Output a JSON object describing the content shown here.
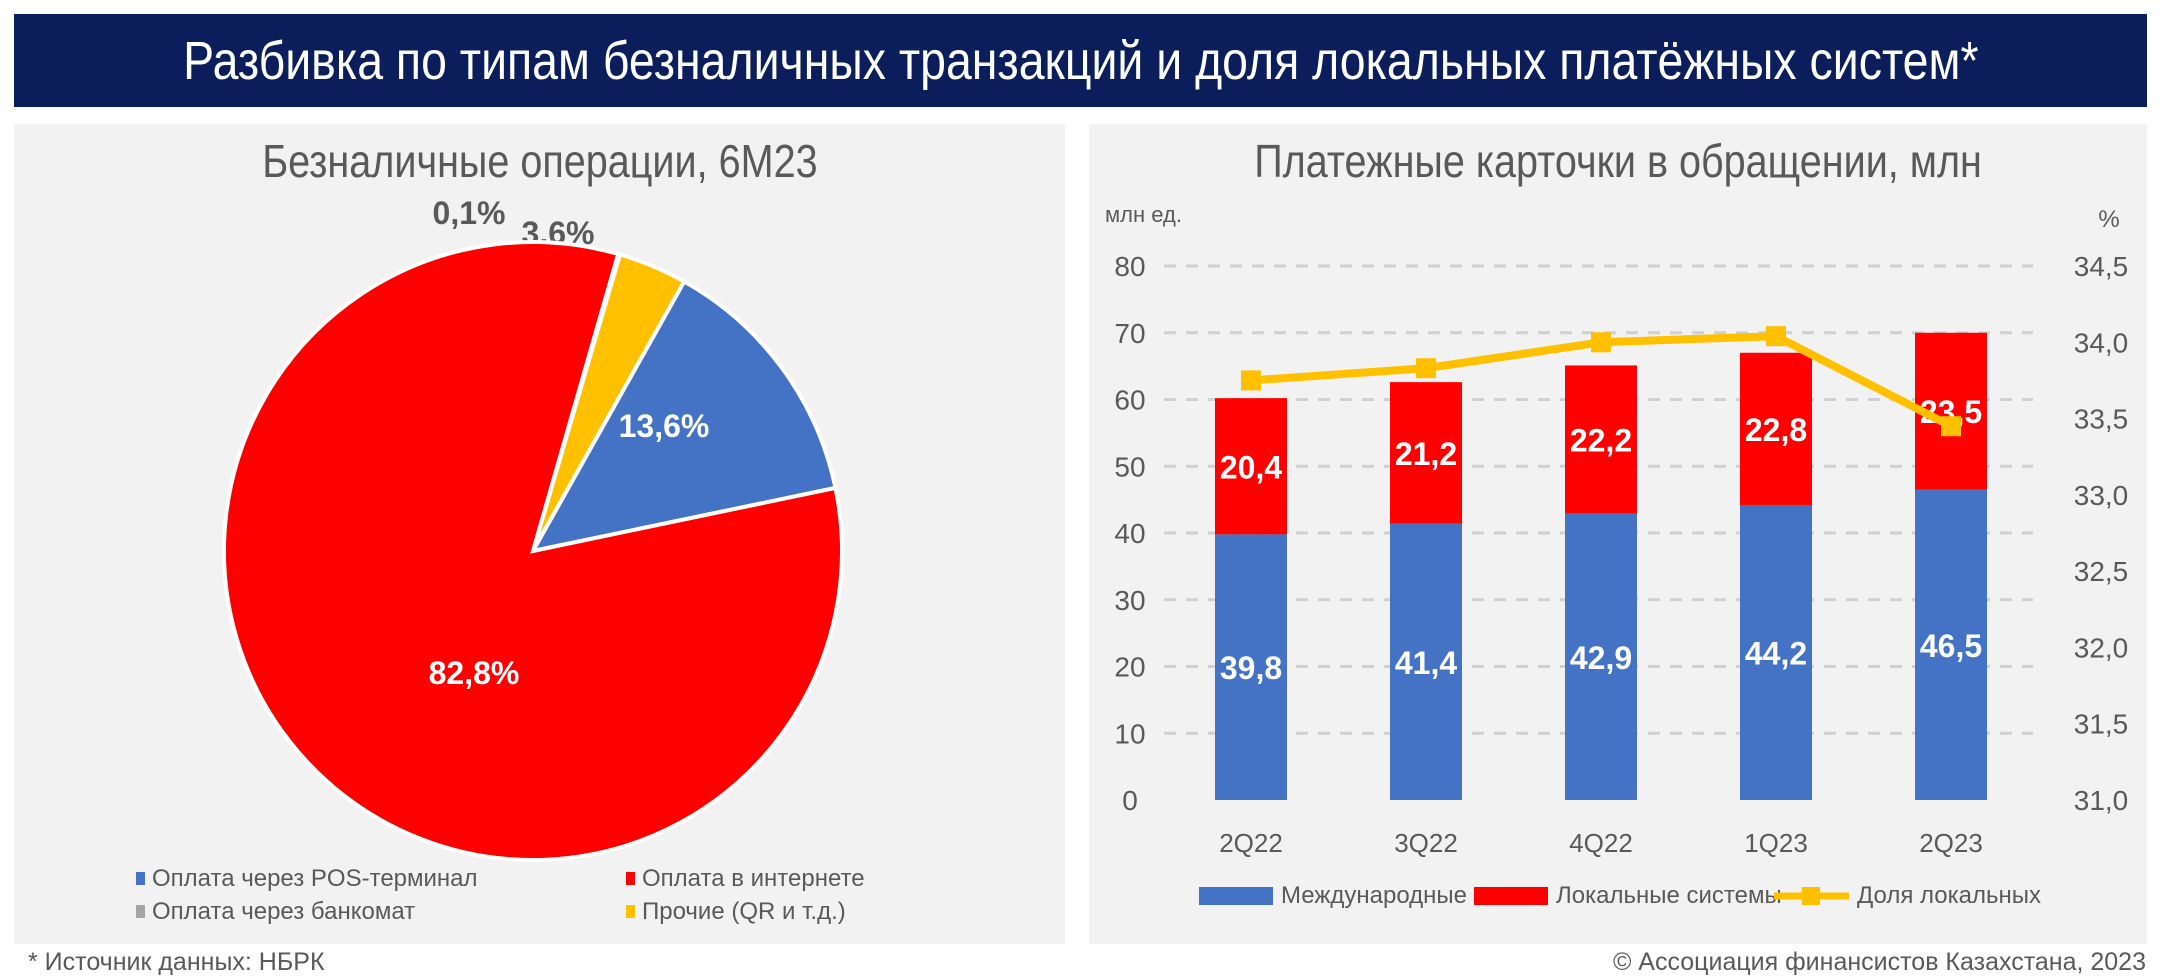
{
  "header": {
    "title": "Разбивка по типам безналичных транзакций и доля локальных платёжных систем*"
  },
  "footer": {
    "source": "* Источник данных: НБРК",
    "copyright": "© Ассоциация финансистов Казахстана, 2023"
  },
  "chart_data": [
    {
      "type": "pie",
      "title": "Безналичные операции, 6М23",
      "slices": [
        {
          "name": "Оплата через банкомат",
          "value": 0.1,
          "label": "0,1%",
          "color": "#a5a5a5"
        },
        {
          "name": "Прочие (QR и т.д.)",
          "value": 3.6,
          "label": "3,6%",
          "color": "#ffc000"
        },
        {
          "name": "Оплата через POS-терминал",
          "value": 13.6,
          "label": "13,6%",
          "color": "#4472c4"
        },
        {
          "name": "Оплата в интернете",
          "value": 82.8,
          "label": "82,8%",
          "color": "#ff0000"
        }
      ],
      "legend": [
        "Оплата через POS-терминал",
        "Оплата в интернете",
        "Оплата через банкомат",
        "Прочие (QR и т.д.)"
      ],
      "legend_colors": [
        "#4472c4",
        "#ff0000",
        "#a5a5a5",
        "#ffc000"
      ],
      "legend_placement": "bottom"
    },
    {
      "type": "bar",
      "stacked": true,
      "title": "Платежные карточки в обращении, млн",
      "ylabel_left": "млн ед.",
      "ylabel_right": "%",
      "categories": [
        "2Q22",
        "3Q22",
        "4Q22",
        "1Q23",
        "2Q23"
      ],
      "ylim": [
        0,
        80
      ],
      "yticks": [
        "0",
        "10",
        "20",
        "30",
        "40",
        "50",
        "60",
        "70",
        "80"
      ],
      "y2lim": [
        31.0,
        34.5
      ],
      "y2ticks": [
        "31,0",
        "31,5",
        "32,0",
        "32,5",
        "33,0",
        "33,5",
        "34,0",
        "34,5"
      ],
      "grid": true,
      "legend_placement": "bottom",
      "series": [
        {
          "name": "Международные",
          "type": "bar",
          "color": "#4472c4",
          "values": [
            39.8,
            41.4,
            42.9,
            44.2,
            46.5
          ],
          "labels": [
            "39,8",
            "41,4",
            "42,9",
            "44,2",
            "46,5"
          ]
        },
        {
          "name": "Локальные системы",
          "type": "bar",
          "color": "#ff0000",
          "values": [
            20.4,
            21.2,
            22.2,
            22.8,
            23.5
          ],
          "labels": [
            "20,4",
            "21,2",
            "22,2",
            "22,8",
            "23,5"
          ]
        },
        {
          "name": "Доля локальных",
          "type": "line",
          "axis": "right",
          "color": "#ffc000",
          "values": [
            33.75,
            33.83,
            34.0,
            34.04,
            33.45
          ]
        }
      ]
    }
  ]
}
